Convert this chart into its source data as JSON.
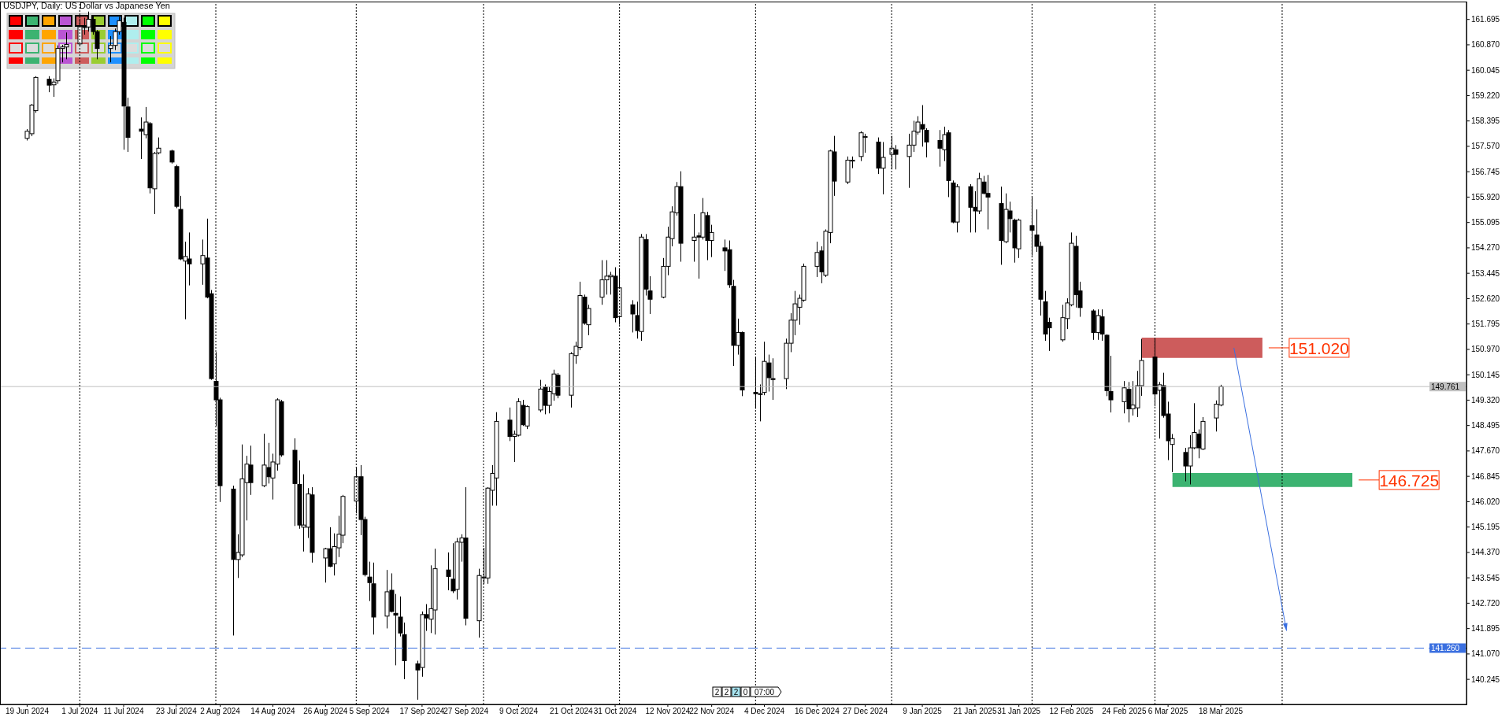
{
  "chart_data": {
    "type": "candlestick",
    "title": "USDJPY, Daily:  US Dollar vs Japanese Yen",
    "x": [
      "2024-06-19",
      "2024-06-20",
      "2024-06-21",
      "2024-06-24",
      "2024-06-25",
      "2024-06-26",
      "2024-06-27",
      "2024-06-28",
      "2024-07-01",
      "2024-07-02",
      "2024-07-03",
      "2024-07-04",
      "2024-07-05",
      "2024-07-08",
      "2024-07-09",
      "2024-07-10",
      "2024-07-11",
      "2024-07-12",
      "2024-07-15",
      "2024-07-16",
      "2024-07-17",
      "2024-07-18",
      "2024-07-19",
      "2024-07-22",
      "2024-07-23",
      "2024-07-24",
      "2024-07-25",
      "2024-07-26",
      "2024-07-29",
      "2024-07-30",
      "2024-07-31",
      "2024-08-01",
      "2024-08-02",
      "2024-08-05",
      "2024-08-06",
      "2024-08-07",
      "2024-08-08",
      "2024-08-09",
      "2024-08-12",
      "2024-08-13",
      "2024-08-14",
      "2024-08-15",
      "2024-08-16",
      "2024-08-19",
      "2024-08-20",
      "2024-08-21",
      "2024-08-22",
      "2024-08-23",
      "2024-08-26",
      "2024-08-27",
      "2024-08-28",
      "2024-08-29",
      "2024-08-30",
      "2024-09-02",
      "2024-09-03",
      "2024-09-04",
      "2024-09-05",
      "2024-09-06",
      "2024-09-09",
      "2024-09-10",
      "2024-09-11",
      "2024-09-12",
      "2024-09-13",
      "2024-09-16",
      "2024-09-17",
      "2024-09-18",
      "2024-09-19",
      "2024-09-20",
      "2024-09-23",
      "2024-09-24",
      "2024-09-25",
      "2024-09-26",
      "2024-09-27",
      "2024-09-30",
      "2024-10-01",
      "2024-10-02",
      "2024-10-03",
      "2024-10-04",
      "2024-10-07",
      "2024-10-08",
      "2024-10-09",
      "2024-10-10",
      "2024-10-11",
      "2024-10-14",
      "2024-10-15",
      "2024-10-16",
      "2024-10-17",
      "2024-10-18",
      "2024-10-21",
      "2024-10-22",
      "2024-10-23",
      "2024-10-24",
      "2024-10-25",
      "2024-10-28",
      "2024-10-29",
      "2024-10-30",
      "2024-10-31",
      "2024-11-01",
      "2024-11-04",
      "2024-11-05",
      "2024-11-06",
      "2024-11-07",
      "2024-11-08",
      "2024-11-11",
      "2024-11-12",
      "2024-11-13",
      "2024-11-14",
      "2024-11-15",
      "2024-11-18",
      "2024-11-19",
      "2024-11-20",
      "2024-11-21",
      "2024-11-22",
      "2024-11-25",
      "2024-11-26",
      "2024-11-27",
      "2024-11-28",
      "2024-11-29",
      "2024-12-02",
      "2024-12-03",
      "2024-12-04",
      "2024-12-05",
      "2024-12-06",
      "2024-12-09",
      "2024-12-10",
      "2024-12-11",
      "2024-12-12",
      "2024-12-13",
      "2024-12-16",
      "2024-12-17",
      "2024-12-18",
      "2024-12-19",
      "2024-12-20",
      "2024-12-23",
      "2024-12-24",
      "2024-12-26",
      "2024-12-27",
      "2024-12-30",
      "2024-12-31",
      "2025-01-02",
      "2025-01-03",
      "2025-01-06",
      "2025-01-07",
      "2025-01-08",
      "2025-01-09",
      "2025-01-10",
      "2025-01-13",
      "2025-01-14",
      "2025-01-15",
      "2025-01-16",
      "2025-01-17",
      "2025-01-20",
      "2025-01-21",
      "2025-01-22",
      "2025-01-23",
      "2025-01-24",
      "2025-01-27",
      "2025-01-28",
      "2025-01-29",
      "2025-01-30",
      "2025-01-31",
      "2025-02-03",
      "2025-02-04",
      "2025-02-05",
      "2025-02-06",
      "2025-02-07",
      "2025-02-10",
      "2025-02-11",
      "2025-02-12",
      "2025-02-13",
      "2025-02-14",
      "2025-02-17",
      "2025-02-18",
      "2025-02-19",
      "2025-02-20",
      "2025-02-21",
      "2025-02-24",
      "2025-02-25",
      "2025-02-26",
      "2025-02-27",
      "2025-02-28",
      "2025-03-03",
      "2025-03-04",
      "2025-03-05",
      "2025-03-06",
      "2025-03-07",
      "2025-03-10",
      "2025-03-11",
      "2025-03-12",
      "2025-03-13",
      "2025-03-14",
      "2025-03-17",
      "2025-03-18"
    ],
    "ohlc": [
      [
        157.83,
        158.13,
        157.76,
        158.06
      ],
      [
        157.98,
        158.95,
        157.9,
        158.91
      ],
      [
        158.73,
        159.85,
        158.66,
        159.81
      ],
      [
        159.75,
        159.85,
        159.33,
        159.56
      ],
      [
        159.57,
        159.78,
        159.18,
        159.66
      ],
      [
        159.7,
        160.85,
        159.6,
        160.75
      ],
      [
        160.75,
        160.87,
        160.3,
        160.8
      ],
      [
        160.8,
        161.27,
        160.4,
        160.88
      ],
      [
        160.9,
        161.72,
        160.85,
        161.46
      ],
      [
        161.46,
        161.75,
        161.2,
        161.45
      ],
      [
        161.45,
        161.95,
        161.3,
        161.7
      ],
      [
        161.7,
        161.8,
        161.2,
        161.3
      ],
      [
        161.3,
        161.35,
        160.4,
        160.75
      ],
      [
        160.75,
        161.15,
        160.3,
        160.85
      ],
      [
        160.85,
        161.4,
        160.7,
        161.3
      ],
      [
        161.3,
        161.78,
        161.2,
        161.65
      ],
      [
        161.6,
        161.75,
        157.46,
        158.88
      ],
      [
        158.85,
        159.15,
        157.39,
        157.86
      ],
      [
        158.13,
        158.51,
        157.16,
        158.06
      ],
      [
        157.95,
        158.85,
        157.83,
        158.36
      ],
      [
        158.31,
        158.36,
        156.04,
        156.22
      ],
      [
        156.19,
        157.39,
        155.37,
        157.34
      ],
      [
        157.36,
        157.86,
        157.31,
        157.51
      ],
      [
        157.42,
        157.46,
        157.01,
        157.06
      ],
      [
        156.91,
        156.97,
        155.56,
        155.62
      ],
      [
        155.52,
        155.96,
        153.87,
        153.91
      ],
      [
        153.84,
        154.47,
        151.95,
        153.99
      ],
      [
        153.91,
        154.77,
        153.05,
        153.75
      ],
      [
        153.75,
        154.54,
        153.07,
        154.02
      ],
      [
        153.94,
        155.22,
        152.63,
        152.67
      ],
      [
        152.78,
        152.9,
        149.98,
        150.02
      ],
      [
        149.93,
        150.88,
        148.48,
        149.33
      ],
      [
        149.33,
        149.4,
        146.01,
        146.54
      ],
      [
        146.43,
        146.54,
        141.67,
        144.14
      ],
      [
        144.14,
        144.96,
        143.54,
        144.37
      ],
      [
        144.29,
        147.88,
        144.22,
        146.76
      ],
      [
        146.64,
        147.51,
        145.41,
        147.24
      ],
      [
        147.21,
        147.84,
        146.24,
        146.64
      ],
      [
        146.54,
        148.23,
        146.49,
        147.21
      ],
      [
        147.13,
        147.93,
        146.61,
        146.83
      ],
      [
        146.79,
        147.58,
        146.09,
        147.31
      ],
      [
        147.24,
        149.38,
        147.03,
        149.33
      ],
      [
        149.27,
        149.33,
        147.48,
        147.54
      ],
      [
        147.69,
        148.08,
        145.23,
        146.61
      ],
      [
        146.58,
        147.36,
        145.14,
        145.26
      ],
      [
        145.19,
        146.91,
        144.4,
        145.26
      ],
      [
        145.19,
        146.46,
        144.84,
        146.27
      ],
      [
        146.24,
        146.49,
        144.04,
        144.37
      ],
      [
        144.19,
        144.52,
        143.39,
        144.49
      ],
      [
        144.49,
        145.19,
        143.89,
        143.92
      ],
      [
        144.0,
        144.99,
        143.62,
        144.56
      ],
      [
        144.52,
        145.56,
        144.22,
        144.96
      ],
      [
        144.93,
        146.24,
        144.67,
        146.19
      ],
      [
        146.04,
        147.13,
        145.64,
        146.83
      ],
      [
        146.83,
        147.21,
        144.93,
        145.44
      ],
      [
        145.44,
        145.53,
        143.59,
        143.65
      ],
      [
        143.57,
        144.07,
        142.79,
        143.39
      ],
      [
        143.35,
        144.04,
        141.7,
        142.27
      ],
      [
        142.3,
        143.8,
        141.9,
        143.09
      ],
      [
        143.14,
        143.69,
        142.42,
        142.45
      ],
      [
        142.39,
        143.02,
        140.7,
        142.33
      ],
      [
        142.27,
        142.94,
        141.64,
        141.75
      ],
      [
        141.7,
        142.09,
        140.25,
        140.85
      ],
      [
        140.75,
        140.85,
        139.58,
        140.55
      ],
      [
        140.63,
        142.45,
        140.33,
        142.35
      ],
      [
        142.35,
        142.69,
        141.82,
        142.24
      ],
      [
        142.2,
        143.95,
        141.75,
        142.54
      ],
      [
        142.5,
        144.49,
        141.7,
        143.84
      ],
      [
        143.8,
        144.37,
        143.14,
        143.59
      ],
      [
        143.5,
        144.67,
        143.05,
        143.12
      ],
      [
        143.17,
        144.84,
        142.84,
        144.71
      ],
      [
        144.7,
        144.96,
        144.07,
        144.84
      ],
      [
        144.84,
        146.49,
        142.0,
        142.23
      ],
      [
        142.15,
        143.84,
        141.6,
        143.62
      ],
      [
        143.54,
        144.52,
        143.35,
        143.57
      ],
      [
        143.54,
        146.49,
        143.35,
        146.46
      ],
      [
        146.39,
        147.21,
        145.89,
        146.94
      ],
      [
        146.79,
        148.93,
        145.89,
        148.63
      ],
      [
        148.67,
        149.08,
        147.99,
        148.14
      ],
      [
        148.14,
        148.33,
        147.31,
        148.21
      ],
      [
        148.18,
        149.38,
        148.14,
        149.27
      ],
      [
        149.15,
        149.33,
        148.48,
        148.52
      ],
      [
        148.48,
        149.15,
        148.38,
        149.11
      ],
      [
        149.0,
        149.98,
        148.93,
        149.68
      ],
      [
        149.75,
        149.83,
        148.86,
        149.15
      ],
      [
        149.15,
        149.75,
        148.89,
        149.6
      ],
      [
        149.53,
        150.31,
        149.3,
        150.17
      ],
      [
        150.13,
        150.2,
        149.38,
        149.48
      ],
      [
        149.48,
        150.88,
        149.08,
        150.83
      ],
      [
        150.77,
        151.22,
        150.5,
        151.07
      ],
      [
        151.03,
        153.17,
        150.95,
        152.72
      ],
      [
        152.67,
        152.75,
        151.77,
        151.82
      ],
      [
        151.77,
        152.42,
        151.43,
        152.3
      ],
      [
        152.67,
        153.87,
        152.42,
        153.23
      ],
      [
        153.23,
        153.87,
        152.75,
        153.35
      ],
      [
        153.33,
        153.49,
        152.75,
        153.38
      ],
      [
        153.35,
        153.64,
        151.85,
        152.0
      ],
      [
        152.03,
        153.61,
        151.77,
        152.97
      ],
      [
        152.42,
        152.57,
        151.52,
        152.12
      ],
      [
        152.07,
        152.52,
        151.32,
        151.58
      ],
      [
        151.55,
        154.72,
        151.25,
        154.62
      ],
      [
        154.54,
        154.72,
        152.72,
        152.93
      ],
      [
        152.87,
        153.35,
        152.12,
        152.6
      ],
      [
        152.67,
        153.94,
        152.63,
        153.67
      ],
      [
        153.67,
        154.96,
        153.38,
        154.62
      ],
      [
        154.57,
        155.62,
        154.32,
        155.44
      ],
      [
        155.41,
        156.41,
        155.32,
        156.26
      ],
      [
        156.26,
        156.76,
        153.82,
        154.42
      ],
      [
        154.51,
        155.37,
        153.82,
        154.62
      ],
      [
        154.66,
        154.77,
        153.27,
        154.62
      ],
      [
        154.62,
        155.89,
        154.54,
        155.41
      ],
      [
        155.32,
        155.44,
        153.87,
        154.51
      ],
      [
        154.51,
        155.02,
        153.97,
        154.77
      ],
      [
        154.27,
        154.54,
        153.52,
        154.17
      ],
      [
        154.21,
        154.51,
        152.97,
        153.07
      ],
      [
        153.02,
        153.23,
        150.43,
        151.1
      ],
      [
        151.1,
        151.97,
        150.8,
        151.52
      ],
      [
        151.52,
        151.55,
        149.45,
        149.65
      ],
      [
        149.57,
        150.73,
        149.04,
        149.53
      ],
      [
        149.53,
        149.83,
        148.63,
        149.51
      ],
      [
        149.57,
        151.22,
        149.48,
        150.58
      ],
      [
        150.53,
        150.8,
        149.6,
        150.05
      ],
      [
        150.02,
        150.68,
        149.33,
        149.99
      ],
      [
        150.02,
        151.32,
        149.68,
        151.17
      ],
      [
        151.17,
        152.15,
        150.88,
        151.92
      ],
      [
        151.92,
        152.87,
        151.43,
        152.45
      ],
      [
        152.34,
        152.75,
        151.77,
        152.63
      ],
      [
        152.57,
        153.76,
        152.52,
        153.67
      ],
      [
        153.67,
        154.47,
        153.32,
        154.12
      ],
      [
        154.17,
        154.32,
        153.12,
        153.49
      ],
      [
        153.38,
        154.87,
        153.32,
        154.81
      ],
      [
        154.77,
        157.46,
        154.42,
        157.42
      ],
      [
        157.39,
        157.91,
        155.96,
        156.44
      ],
      [
        156.41,
        157.24,
        156.34,
        157.12
      ],
      [
        157.09,
        157.24,
        156.86,
        157.12
      ],
      [
        157.24,
        158.06,
        157.09,
        158.01
      ],
      [
        157.86,
        157.98,
        157.36,
        157.89
      ],
      [
        157.71,
        157.86,
        156.67,
        156.86
      ],
      [
        156.86,
        157.71,
        156.01,
        157.21
      ],
      [
        157.31,
        157.91,
        156.82,
        157.51
      ],
      [
        157.46,
        157.61,
        156.82,
        157.31
      ],
      [
        157.24,
        157.98,
        156.22,
        157.61
      ],
      [
        157.61,
        158.4,
        157.39,
        158.06
      ],
      [
        158.03,
        158.55,
        157.95,
        158.36
      ],
      [
        158.28,
        158.91,
        157.56,
        158.13
      ],
      [
        158.09,
        158.16,
        157.21,
        157.71
      ],
      [
        157.76,
        158.1,
        156.91,
        157.51
      ],
      [
        157.46,
        158.21,
        157.09,
        157.95
      ],
      [
        158.01,
        158.1,
        155.92,
        156.46
      ],
      [
        156.38,
        156.46,
        155.07,
        155.11
      ],
      [
        155.11,
        156.34,
        154.77,
        156.26
      ],
      [
        156.26,
        156.34,
        154.77,
        155.59
      ],
      [
        155.59,
        156.11,
        154.77,
        155.47
      ],
      [
        155.47,
        156.71,
        155.37,
        156.52
      ],
      [
        156.41,
        156.61,
        156.01,
        156.04
      ],
      [
        156.04,
        156.64,
        154.87,
        155.92
      ],
      [
        155.71,
        156.26,
        153.72,
        154.51
      ],
      [
        154.47,
        156.04,
        154.42,
        155.52
      ],
      [
        155.47,
        155.77,
        154.77,
        155.22
      ],
      [
        155.17,
        155.22,
        153.79,
        154.27
      ],
      [
        154.24,
        155.22,
        153.94,
        155.17
      ],
      [
        154.99,
        155.92,
        154.02,
        154.84
      ],
      [
        154.69,
        155.52,
        154.14,
        154.32
      ],
      [
        154.32,
        154.47,
        152.07,
        152.6
      ],
      [
        152.52,
        152.87,
        151.25,
        151.47
      ],
      [
        151.85,
        152.0,
        150.92,
        151.67
      ],
      [
        151.28,
        152.42,
        151.22,
        152.0
      ],
      [
        151.97,
        152.63,
        151.63,
        152.48
      ],
      [
        152.42,
        154.77,
        152.37,
        154.42
      ],
      [
        154.32,
        154.66,
        152.33,
        152.75
      ],
      [
        152.87,
        153.17,
        152.03,
        152.33
      ],
      [
        152.22,
        152.27,
        151.28,
        151.52
      ],
      [
        151.52,
        152.27,
        151.28,
        152.07
      ],
      [
        152.03,
        152.27,
        151.25,
        151.47
      ],
      [
        151.43,
        151.46,
        149.45,
        149.63
      ],
      [
        149.6,
        150.76,
        148.92,
        149.33
      ],
      [
        149.27,
        149.94,
        148.89,
        149.72
      ],
      [
        149.67,
        149.91,
        148.6,
        149.04
      ],
      [
        149.04,
        149.94,
        148.82,
        149.16
      ],
      [
        149.07,
        150.27,
        148.77,
        149.79
      ],
      [
        149.79,
        151.31,
        149.46,
        150.61
      ],
      [
        150.72,
        151.31,
        149.12,
        149.52
      ],
      [
        149.64,
        149.91,
        148.07,
        149.82
      ],
      [
        149.79,
        150.21,
        148.75,
        148.82
      ],
      [
        148.87,
        149.27,
        147.37,
        148.0
      ],
      [
        147.88,
        148.22,
        146.98,
        148.07
      ],
      [
        147.62,
        147.77,
        146.68,
        147.18
      ],
      [
        147.18,
        148.18,
        146.58,
        147.77
      ],
      [
        147.77,
        149.22,
        147.73,
        148.27
      ],
      [
        148.22,
        148.37,
        147.43,
        147.77
      ],
      [
        147.73,
        148.77,
        147.7,
        148.63
      ],
      [
        148.74,
        149.31,
        148.3,
        149.19
      ],
      [
        149.16,
        149.82,
        149.12,
        149.761
      ]
    ],
    "xlim": [
      "2024-06-13",
      "2025-05-13"
    ],
    "xticks": [
      {
        "value": "2024-06-19",
        "label": "19 Jun 2024"
      },
      {
        "value": "2024-07-01",
        "label": "1 Jul 2024"
      },
      {
        "value": "2024-07-11",
        "label": "11 Jul 2024"
      },
      {
        "value": "2024-07-23",
        "label": "23 Jul 2024"
      },
      {
        "value": "2024-08-02",
        "label": "2 Aug 2024"
      },
      {
        "value": "2024-08-14",
        "label": "14 Aug 2024"
      },
      {
        "value": "2024-08-26",
        "label": "26 Aug 2024"
      },
      {
        "value": "2024-09-05",
        "label": "5 Sep 2024"
      },
      {
        "value": "2024-09-17",
        "label": "17 Sep 2024"
      },
      {
        "value": "2024-09-27",
        "label": "27 Sep 2024"
      },
      {
        "value": "2024-10-09",
        "label": "9 Oct 2024"
      },
      {
        "value": "2024-10-21",
        "label": "21 Oct 2024"
      },
      {
        "value": "2024-10-31",
        "label": "31 Oct 2024"
      },
      {
        "value": "2024-11-12",
        "label": "12 Nov 2024"
      },
      {
        "value": "2024-11-22",
        "label": "22 Nov 2024"
      },
      {
        "value": "2024-12-04",
        "label": "4 Dec 2024"
      },
      {
        "value": "2024-12-16",
        "label": "16 Dec 2024"
      },
      {
        "value": "2024-12-27",
        "label": "27 Dec 2024"
      },
      {
        "value": "2025-01-09",
        "label": "9 Jan 2025"
      },
      {
        "value": "2025-01-21",
        "label": "21 Jan 2025"
      },
      {
        "value": "2025-01-31",
        "label": "31 Jan 2025"
      },
      {
        "value": "2025-02-12",
        "label": "12 Feb 2025"
      },
      {
        "value": "2025-02-24",
        "label": "24 Feb 2025"
      },
      {
        "value": "2025-03-06",
        "label": "6 Mar 2025"
      },
      {
        "value": "2025-03-18",
        "label": "18 Mar 2025"
      }
    ],
    "ylim": [
      139.43,
      162.25
    ],
    "yticks": [
      {
        "value": 161.695,
        "label": "161.695"
      },
      {
        "value": 160.87,
        "label": "160.870"
      },
      {
        "value": 160.045,
        "label": "160.045"
      },
      {
        "value": 159.22,
        "label": "159.220"
      },
      {
        "value": 158.395,
        "label": "158.395"
      },
      {
        "value": 157.57,
        "label": "157.570"
      },
      {
        "value": 156.745,
        "label": "156.745"
      },
      {
        "value": 155.92,
        "label": "155.920"
      },
      {
        "value": 155.095,
        "label": "155.095"
      },
      {
        "value": 154.27,
        "label": "154.270"
      },
      {
        "value": 153.445,
        "label": "153.445"
      },
      {
        "value": 152.62,
        "label": "152.620"
      },
      {
        "value": 151.795,
        "label": "151.795"
      },
      {
        "value": 150.97,
        "label": "150.970"
      },
      {
        "value": 150.145,
        "label": "150.145"
      },
      {
        "value": 149.32,
        "label": "149.320"
      },
      {
        "value": 148.495,
        "label": "148.495"
      },
      {
        "value": 147.67,
        "label": "147.670"
      },
      {
        "value": 146.845,
        "label": "146.845"
      },
      {
        "value": 146.02,
        "label": "146.020"
      },
      {
        "value": 145.195,
        "label": "145.195"
      },
      {
        "value": 144.37,
        "label": "144.370"
      },
      {
        "value": 143.545,
        "label": "143.545"
      },
      {
        "value": 142.72,
        "label": "142.720"
      },
      {
        "value": 141.895,
        "label": "141.895"
      },
      {
        "value": 141.07,
        "label": "141.070"
      },
      {
        "value": 140.245,
        "label": "140.245"
      }
    ],
    "ref_lines": [
      {
        "axis": "y",
        "value": 149.761,
        "label": "149.761",
        "color": "#c0c0c0"
      },
      {
        "axis": "y",
        "value": 141.26,
        "label": "141.260",
        "color": "#3a6fe0",
        "line_style": "dashed"
      },
      {
        "axis": "x",
        "value": "2024-07-01",
        "color": "#000000",
        "line_style": "dotted"
      },
      {
        "axis": "x",
        "value": "2024-08-01",
        "color": "#000000",
        "line_style": "dotted"
      },
      {
        "axis": "x",
        "value": "2024-09-02",
        "color": "#000000",
        "line_style": "dotted"
      },
      {
        "axis": "x",
        "value": "2024-10-01",
        "color": "#000000",
        "line_style": "dotted"
      },
      {
        "axis": "x",
        "value": "2024-11-01",
        "color": "#000000",
        "line_style": "dotted"
      },
      {
        "axis": "x",
        "value": "2024-12-02",
        "color": "#000000",
        "line_style": "dotted"
      },
      {
        "axis": "x",
        "value": "2025-01-02",
        "color": "#000000",
        "line_style": "dotted"
      },
      {
        "axis": "x",
        "value": "2025-02-03",
        "color": "#000000",
        "line_style": "dotted"
      },
      {
        "axis": "x",
        "value": "2025-03-03",
        "color": "#000000",
        "line_style": "dotted"
      },
      {
        "axis": "x",
        "value": "2025-04-01",
        "color": "#000000",
        "line_style": "dotted"
      }
    ],
    "bands": [
      {
        "axis": "y",
        "from": 150.69,
        "to": 151.35,
        "label": "151.020",
        "color": "#cd5c5c"
      },
      {
        "axis": "y",
        "from": 146.5,
        "to": 146.95,
        "label": "146.725",
        "color": "#3cb371"
      }
    ],
    "annotations": [
      "2",
      "2",
      "2",
      "0",
      "07:00"
    ]
  }
}
